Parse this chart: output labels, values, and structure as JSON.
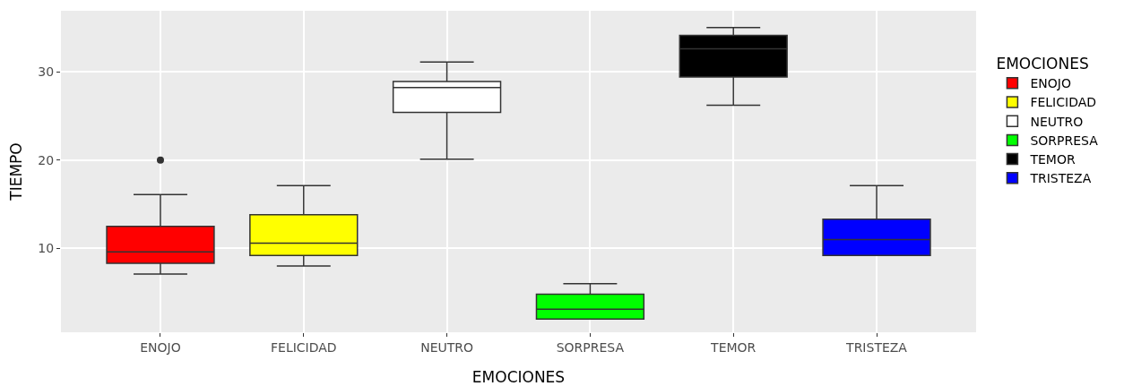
{
  "chart_data": {
    "type": "box",
    "xlabel": "EMOCIONES",
    "ylabel": "TIEMPO",
    "legend_title": "EMOCIONES",
    "legend": "right",
    "grid": true,
    "categories": [
      "ENOJO",
      "FELICIDAD",
      "NEUTRO",
      "SORPRESA",
      "TEMOR",
      "TRISTEZA"
    ],
    "ylim": [
      0.5,
      36.9
    ],
    "yticks": [
      10,
      20,
      30
    ],
    "series": [
      {
        "name": "ENOJO",
        "color": "#ff0000",
        "boxes": [
          {
            "low": 7.1,
            "q1": 8.3,
            "median": 9.6,
            "q3": 12.5,
            "high": 16.1,
            "outliers": [
              20
            ]
          },
          null,
          null,
          null,
          null,
          null
        ]
      },
      {
        "name": "FELICIDAD",
        "color": "#ffff00",
        "boxes": [
          null,
          {
            "low": 8,
            "q1": 9.2,
            "median": 10.6,
            "q3": 13.8,
            "high": 17.1
          },
          null,
          null,
          null,
          null
        ]
      },
      {
        "name": "NEUTRO",
        "color": "#ffffff",
        "boxes": [
          null,
          null,
          {
            "low": 20.1,
            "q1": 25.4,
            "median": 28.2,
            "q3": 28.9,
            "high": 31.1
          },
          null,
          null,
          null
        ]
      },
      {
        "name": "SORPRESA",
        "color": "#00ff00",
        "boxes": [
          null,
          null,
          null,
          {
            "low": 2,
            "q1": 2,
            "median": 3.1,
            "q3": 4.8,
            "high": 6
          },
          null,
          null
        ]
      },
      {
        "name": "TEMOR",
        "color": "#000000",
        "boxes": [
          null,
          null,
          null,
          null,
          {
            "low": 26.2,
            "q1": 29.4,
            "median": 32.6,
            "q3": 34.1,
            "high": 35
          },
          null
        ]
      },
      {
        "name": "TRISTEZA",
        "color": "#0000ff",
        "boxes": [
          null,
          null,
          null,
          null,
          null,
          {
            "low": 9.2,
            "q1": 9.2,
            "median": 11,
            "q3": 13.3,
            "high": 17.1
          }
        ]
      }
    ]
  }
}
